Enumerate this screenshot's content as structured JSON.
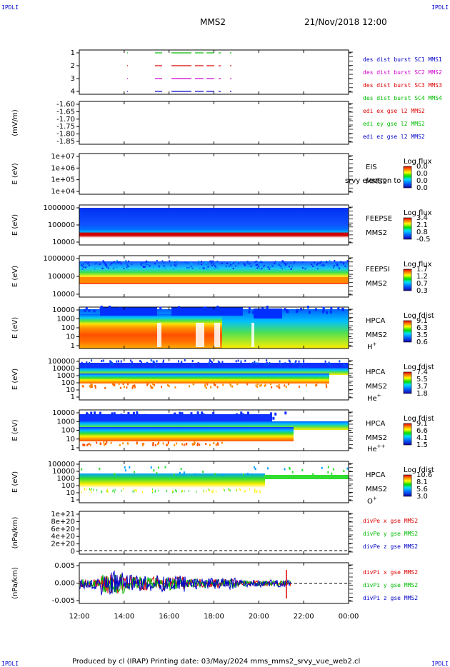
{
  "corner_label": "IPDLI",
  "header": {
    "spacecraft": "MMS2",
    "datetime": "21/Nov/2018 12:00"
  },
  "footer": {
    "text": "Produced by cl (IRAP)   Printing date: 03/May/2024   mms_mms2_srvy_vue_web2.cl"
  },
  "colors": {
    "mms1": "#0000c8",
    "mms2": "#cc00cc",
    "mms3": "#dd0000",
    "mms4": "#00bb00",
    "x": "#dd0000",
    "y": "#00bb00",
    "z": "#0000c8"
  },
  "chart_data": {
    "type": "multi-panel time series",
    "x_axis": {
      "ticks": [
        "12:00",
        "14:00",
        "16:00",
        "18:00",
        "20:00",
        "22:00",
        "00:00"
      ],
      "range": [
        "12:00",
        "00:00"
      ]
    },
    "panels": [
      {
        "type": "scatter",
        "ylim": [
          0.5,
          4.5
        ],
        "yticks": [
          "1",
          "2",
          "3",
          "4"
        ],
        "legend": [
          {
            "text": "des dist burst SC1 MMS1",
            "color": "#0000c8"
          },
          {
            "text": "des dist burst SC2 MMS2",
            "color": "#cc00cc"
          },
          {
            "text": "des dist burst SC3 MMS3",
            "color": "#dd0000"
          },
          {
            "text": "des dist burst SC4 MMS4",
            "color": "#00bb00"
          }
        ]
      },
      {
        "type": "line",
        "ylabel": "(mV/m)",
        "yticks": [
          "-1.60",
          "-1.65",
          "-1.70",
          "-1.75",
          "-1.80",
          "-1.85"
        ],
        "legend": [
          {
            "text": "edi ex gse l2 MMS2",
            "color": "#dd0000"
          },
          {
            "text": "edi ey gse l2 MMS2",
            "color": "#00bb00"
          },
          {
            "text": "edi ez gse l2 MMS2",
            "color": "#0000c8"
          }
        ]
      },
      {
        "type": "heatmap",
        "ylabel": "E (eV)",
        "yticks": [
          "1e+07",
          "1e+06",
          "1e+05",
          "1e+04"
        ],
        "labels": [
          "EIS",
          "MMS2"
        ],
        "overlay_text": "srvy electron to",
        "cbar_title": "Log flux",
        "cbar_ticks": [
          "0.0",
          "0.0",
          "0.0",
          "0.0"
        ]
      },
      {
        "type": "heatmap",
        "ylabel": "E (eV)",
        "yticks": [
          "1000000",
          "100000",
          "10000"
        ],
        "labels": [
          "FEEPSE",
          "MMS2"
        ],
        "cbar_title": "Log flux",
        "cbar_ticks": [
          "3.4",
          "2.1",
          "0.8",
          "-0.5"
        ]
      },
      {
        "type": "heatmap",
        "ylabel": "E (eV)",
        "yticks": [
          "1000000",
          "100000",
          "10000"
        ],
        "labels": [
          "FEEPSI",
          "MMS2"
        ],
        "cbar_title": "Log flux",
        "cbar_ticks": [
          "1.7",
          "1.2",
          "0.7",
          "0.3"
        ]
      },
      {
        "type": "heatmap",
        "ylabel": "E (eV)",
        "yticks": [
          "10000",
          "1000",
          "100",
          "10",
          "1"
        ],
        "labels": [
          "HPCA",
          "MMS2",
          "H+"
        ],
        "cbar_title": "Log fdist",
        "cbar_ticks": [
          "9.1",
          "6.3",
          "3.5",
          "0.6"
        ]
      },
      {
        "type": "heatmap",
        "ylabel": "E (eV)",
        "yticks": [
          "100000",
          "10000",
          "1000",
          "100",
          "10",
          "1"
        ],
        "labels": [
          "HPCA",
          "MMS2",
          "He+"
        ],
        "cbar_title": "Log fdist",
        "cbar_ticks": [
          "7.4",
          "5.5",
          "3.7",
          "1.8"
        ]
      },
      {
        "type": "heatmap",
        "ylabel": "E (eV)",
        "yticks": [
          "10000",
          "1000",
          "100",
          "10",
          "1"
        ],
        "labels": [
          "HPCA",
          "MMS2",
          "He++"
        ],
        "cbar_title": "Log fdist",
        "cbar_ticks": [
          "9.1",
          "6.6",
          "4.1",
          "1.5"
        ]
      },
      {
        "type": "heatmap",
        "ylabel": "E (eV)",
        "yticks": [
          "100000",
          "10000",
          "1000",
          "100",
          "10",
          "1"
        ],
        "labels": [
          "HPCA",
          "MMS2",
          "O+"
        ],
        "cbar_title": "Log fdist",
        "cbar_ticks": [
          "10.6",
          "8.1",
          "5.6",
          "3.0"
        ]
      },
      {
        "type": "line",
        "ylabel": "(nPa/km)",
        "yticks": [
          "1e+21",
          "8e+20",
          "6e+20",
          "4e+20",
          "2e+20",
          "0"
        ],
        "legend": [
          {
            "text": "divPe x gse MMS2",
            "color": "#dd0000"
          },
          {
            "text": "divPe y gse MMS2",
            "color": "#00bb00"
          },
          {
            "text": "divPe z gse MMS2",
            "color": "#0000c8"
          }
        ]
      },
      {
        "type": "line",
        "ylabel": "(nPa/km)",
        "yticks": [
          "0.005",
          "0.000",
          "-0.005"
        ],
        "legend": [
          {
            "text": "divPi x gse MMS2",
            "color": "#dd0000"
          },
          {
            "text": "divPi y gse MMS2",
            "color": "#00bb00"
          },
          {
            "text": "divPi z gse MMS2",
            "color": "#0000c8"
          }
        ]
      }
    ]
  }
}
